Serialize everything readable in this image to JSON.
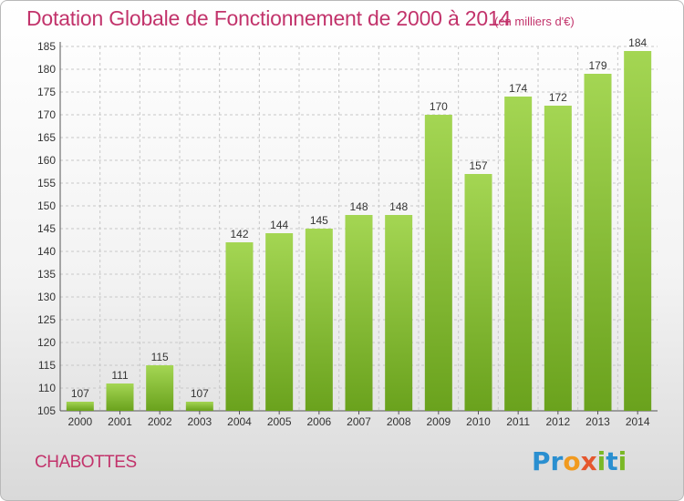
{
  "title": "Dotation Globale de Fonctionnement de 2000 à 2014",
  "subtitle": "(en milliers d'€)",
  "commune": "CHABOTTES",
  "logo_text": "Proxiti",
  "colors": {
    "title": "#c2336b",
    "bar_light": "#a4d653",
    "bar_dark": "#6aa21d"
  },
  "chart_data": {
    "type": "bar",
    "categories": [
      "2000",
      "2001",
      "2002",
      "2003",
      "2004",
      "2005",
      "2006",
      "2007",
      "2008",
      "2009",
      "2010",
      "2011",
      "2012",
      "2013",
      "2014"
    ],
    "values": [
      107,
      111,
      115,
      107,
      142,
      144,
      145,
      148,
      148,
      170,
      157,
      174,
      172,
      179,
      184
    ],
    "ylim": [
      105,
      185
    ],
    "yticks": [
      105,
      110,
      115,
      120,
      125,
      130,
      135,
      140,
      145,
      150,
      155,
      160,
      165,
      170,
      175,
      180,
      185
    ],
    "grid": true
  }
}
